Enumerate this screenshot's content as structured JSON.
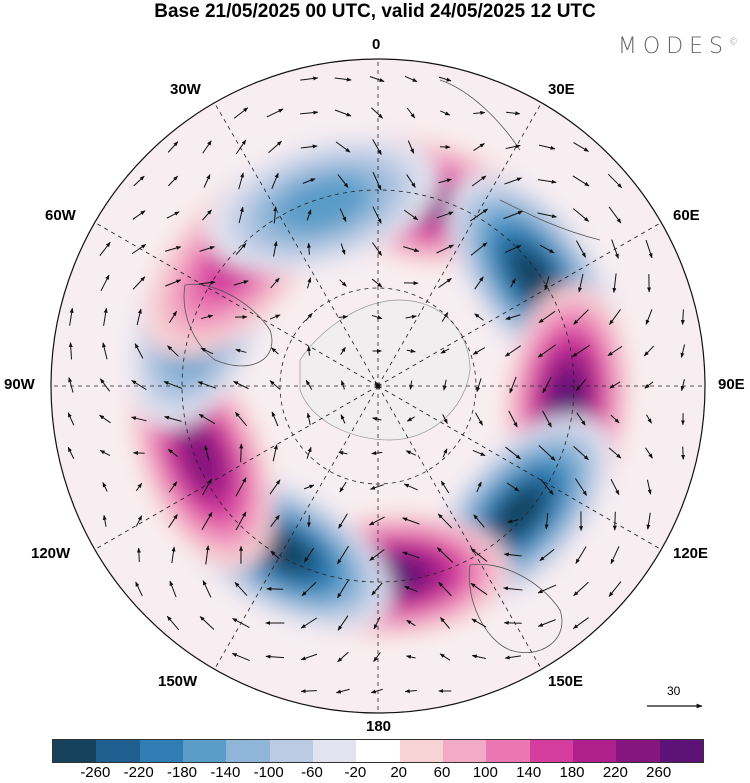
{
  "title": "Base 21/05/2025 00 UTC, valid 24/05/2025 12 UTC",
  "brand": "MODES",
  "brand_mark": "©",
  "longitude_labels": {
    "lon_0": "0",
    "lon_30e": "30E",
    "lon_60e": "60E",
    "lon_90e": "90E",
    "lon_120e": "120E",
    "lon_150e": "150E",
    "lon_180": "180",
    "lon_150w": "150W",
    "lon_120w": "120W",
    "lon_90w": "90W",
    "lon_60w": "60W",
    "lon_30w": "30W"
  },
  "reference_vector": "30",
  "colorbar": {
    "colors": [
      "#17425e",
      "#1f5f8f",
      "#2f7db3",
      "#5a9cc8",
      "#8fb6d9",
      "#bccbe4",
      "#e3e3ef",
      "#ffffff",
      "#f7d3d6",
      "#f3aac4",
      "#ea77b2",
      "#d43d9e",
      "#b0208c",
      "#86167f",
      "#5c1277"
    ],
    "tick_labels": [
      "-260",
      "-220",
      "-180",
      "-140",
      "-100",
      "-60",
      "-20",
      "20",
      "60",
      "100",
      "140",
      "180",
      "220",
      "260"
    ]
  },
  "anomaly_centers": [
    {
      "lon": 12,
      "sign": "positive",
      "strength": 220
    },
    {
      "lon": 55,
      "sign": "negative",
      "strength": 260
    },
    {
      "lon": 95,
      "sign": "positive",
      "strength": 260
    },
    {
      "lon": 132,
      "sign": "negative",
      "strength": 260
    },
    {
      "lon": 176,
      "sign": "positive",
      "strength": 260
    },
    {
      "lon": -150,
      "sign": "negative",
      "strength": 260
    },
    {
      "lon": -112,
      "sign": "positive",
      "strength": 240
    },
    {
      "lon": -68,
      "sign": "negative",
      "strength": 180
    },
    {
      "lon": -48,
      "sign": "positive",
      "strength": 160
    },
    {
      "lon": -17,
      "sign": "negative",
      "strength": 140
    }
  ]
}
